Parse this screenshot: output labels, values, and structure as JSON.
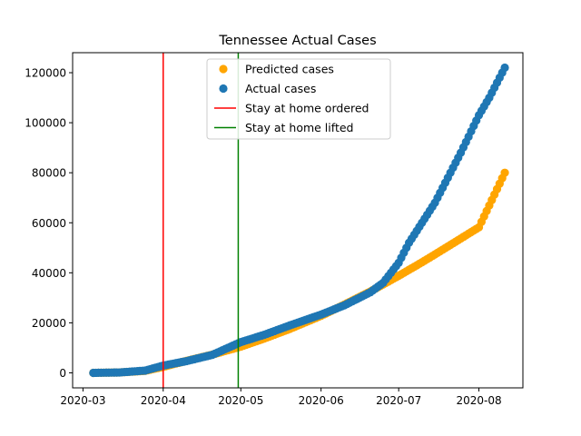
{
  "chart_data": {
    "type": "scatter",
    "title": "Tennessee Actual Cases",
    "xlabel": "",
    "ylabel": "",
    "x_ticks": [
      "2020-03",
      "2020-04",
      "2020-05",
      "2020-06",
      "2020-07",
      "2020-08"
    ],
    "y_ticks": [
      "0",
      "20000",
      "40000",
      "60000",
      "80000",
      "100000",
      "120000"
    ],
    "xlim": [
      "2020-02-26",
      "2020-08-18"
    ],
    "ylim": [
      -6000,
      128000
    ],
    "legend_placement": "upper-center",
    "grid": false,
    "series": [
      {
        "name": "Predicted cases",
        "color": "#ffa500",
        "marker": "circle",
        "x": [
          "2020-03-05",
          "2020-03-15",
          "2020-03-25",
          "2020-04-01",
          "2020-04-10",
          "2020-04-20",
          "2020-05-01",
          "2020-05-10",
          "2020-05-20",
          "2020-06-01",
          "2020-06-10",
          "2020-06-20",
          "2020-07-01",
          "2020-07-10",
          "2020-07-20",
          "2020-08-01",
          "2020-08-11"
        ],
        "y": [
          0,
          150,
          800,
          2400,
          4800,
          7300,
          10500,
          13700,
          17600,
          22800,
          27300,
          32500,
          38800,
          44200,
          50500,
          58200,
          80000
        ]
      },
      {
        "name": "Actual cases",
        "color": "#1f77b4",
        "marker": "circle",
        "x": [
          "2020-03-05",
          "2020-03-15",
          "2020-03-25",
          "2020-04-01",
          "2020-04-10",
          "2020-04-20",
          "2020-05-01",
          "2020-05-10",
          "2020-05-20",
          "2020-06-01",
          "2020-06-10",
          "2020-06-20",
          "2020-06-25",
          "2020-07-01",
          "2020-07-05",
          "2020-07-10",
          "2020-07-15",
          "2020-07-20",
          "2020-07-25",
          "2020-08-01",
          "2020-08-05",
          "2020-08-11"
        ],
        "y": [
          0,
          150,
          900,
          2900,
          4700,
          7200,
          12300,
          15200,
          19000,
          23300,
          27000,
          32200,
          36000,
          44000,
          52000,
          60000,
          68000,
          78000,
          88000,
          103000,
          110000,
          122000
        ]
      }
    ],
    "vlines": [
      {
        "name": "Stay at home ordered",
        "color": "#ff0000",
        "x": "2020-04-01"
      },
      {
        "name": "Stay at home lifted",
        "color": "#008000",
        "x": "2020-04-30"
      }
    ]
  }
}
